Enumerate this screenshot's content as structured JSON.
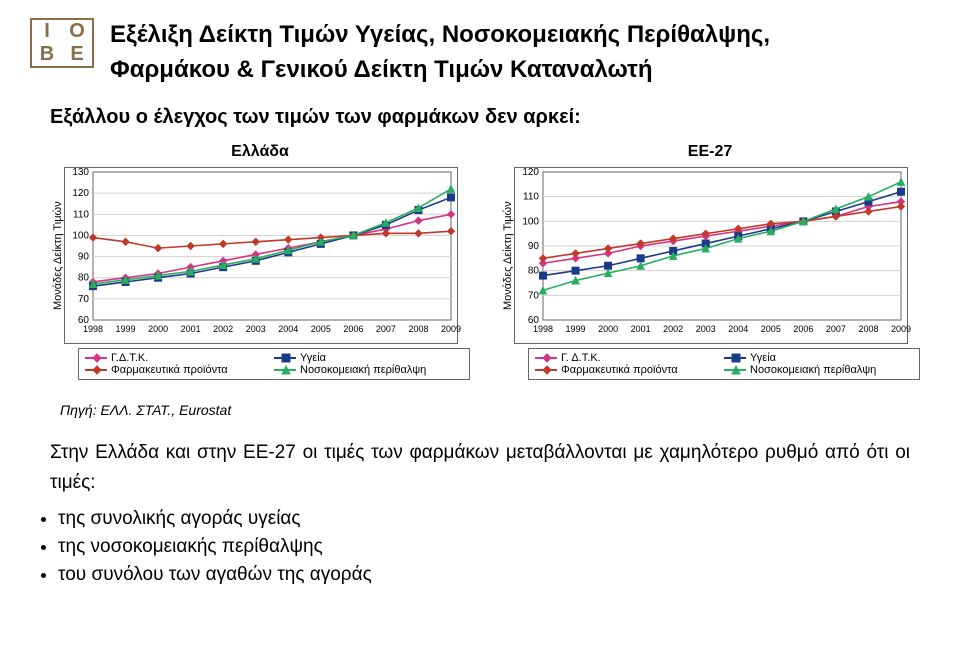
{
  "header": {
    "logo_letters": [
      "I",
      "O",
      "B",
      "E"
    ],
    "title_line1": "Εξέλιξη Δείκτη Τιμών Υγείας, Νοσοκομειακής Περίθαλψης,",
    "title_line2": "Φαρμάκου & Γενικού Δείκτη Τιμών Καταναλωτή"
  },
  "subtitle": "Εξάλλου ο έλεγχος των τιμών των φαρμάκων δεν αρκεί:",
  "charts": {
    "greece": {
      "title": "Ελλάδα",
      "y_label": "Μονάδες Δείκτη Τιμών",
      "ylim": [
        60,
        130
      ],
      "ytick_step": 10,
      "years": [
        1998,
        1999,
        2000,
        2001,
        2002,
        2003,
        2004,
        2005,
        2006,
        2007,
        2008,
        2009
      ],
      "grid_color": "#d0d0d0",
      "border_color": "#666666",
      "series": {
        "gdtk": {
          "label": "Γ.Δ.Τ.Κ.",
          "color": "#d63384",
          "marker": "diamond",
          "values": [
            78,
            80,
            82,
            85,
            88,
            91,
            94,
            97,
            100,
            103,
            107,
            110
          ]
        },
        "ygeia": {
          "label": "Υγεία",
          "color": "#1b3a8a",
          "marker": "square",
          "values": [
            76,
            78,
            80,
            82,
            85,
            88,
            92,
            96,
            100,
            105,
            112,
            118
          ]
        },
        "pharma": {
          "label": "Φαρμακευτικά προϊόντα",
          "color": "#c0392b",
          "marker": "diamond",
          "values": [
            99,
            97,
            94,
            95,
            96,
            97,
            98,
            99,
            100,
            101,
            101,
            102
          ]
        },
        "hospital": {
          "label": "Νοσοκομειακή περίθαλψη",
          "color": "#27ae60",
          "marker": "triangle",
          "values": [
            77,
            79,
            81,
            83,
            86,
            89,
            93,
            97,
            100,
            106,
            113,
            122
          ]
        }
      }
    },
    "ee27": {
      "title": "ΕΕ-27",
      "y_label": "Μονάδες Δείκτη Τιμών",
      "ylim": [
        60,
        120
      ],
      "ytick_step": 10,
      "years": [
        1998,
        1999,
        2000,
        2001,
        2002,
        2003,
        2004,
        2005,
        2006,
        2007,
        2008,
        2009
      ],
      "grid_color": "#d0d0d0",
      "border_color": "#666666",
      "series": {
        "gdtk": {
          "label": "Γ. Δ.Τ.Κ.",
          "color": "#d63384",
          "marker": "diamond",
          "values": [
            83,
            85,
            87,
            90,
            92,
            94,
            96,
            98,
            100,
            102,
            106,
            108
          ]
        },
        "ygeia": {
          "label": "Υγεία",
          "color": "#1b3a8a",
          "marker": "square",
          "values": [
            78,
            80,
            82,
            85,
            88,
            91,
            94,
            97,
            100,
            104,
            108,
            112
          ]
        },
        "pharma": {
          "label": "Φαρμακευτικά προϊόντα",
          "color": "#c0392b",
          "marker": "diamond",
          "values": [
            85,
            87,
            89,
            91,
            93,
            95,
            97,
            99,
            100,
            102,
            104,
            106
          ]
        },
        "hospital": {
          "label": "Νοσοκομειακή περίθαλψη",
          "color": "#27ae60",
          "marker": "triangle",
          "values": [
            72,
            76,
            79,
            82,
            86,
            89,
            93,
            96,
            100,
            105,
            110,
            116
          ]
        }
      }
    }
  },
  "source": "Πηγή: ΕΛΛ. ΣΤΑΤ., Eurostat",
  "body": {
    "paragraph": "Στην Ελλάδα και στην ΕΕ-27 οι τιμές των φαρμάκων μεταβάλλονται με χαμηλότερο ρυθμό από ότι οι τιμές:",
    "bullets": [
      "της συνολικής αγοράς υγείας",
      "της νοσοκομειακής περίθαλψης",
      "του συνόλου των αγαθών της αγοράς"
    ]
  }
}
